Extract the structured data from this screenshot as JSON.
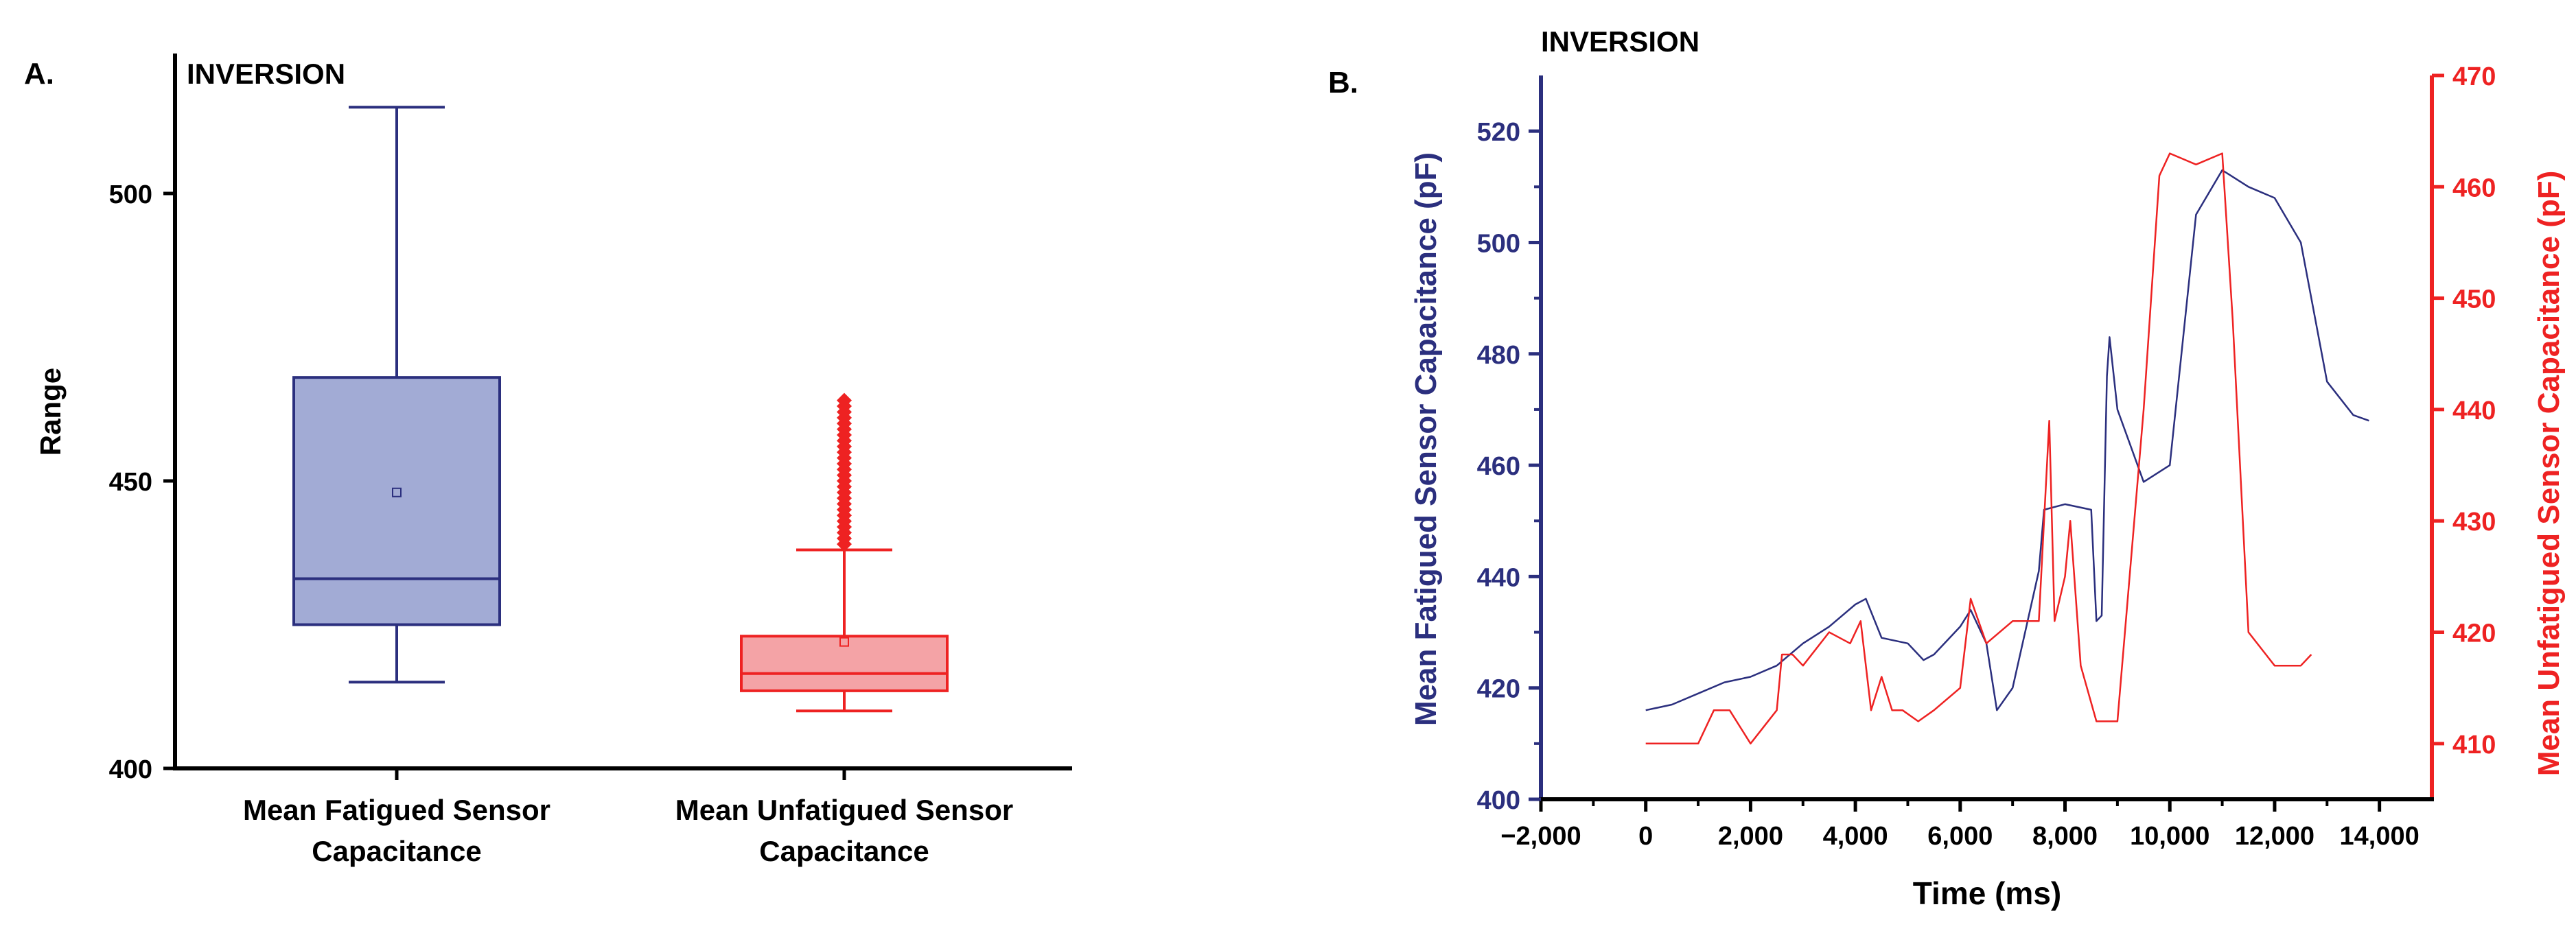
{
  "panels": {
    "a": {
      "label": "A.",
      "title": "INVERSION"
    },
    "b": {
      "label": "B.",
      "title": "INVERSION"
    }
  },
  "colors": {
    "fatigued": "#2b2f7e",
    "fatigued_fill": "#a2abd5",
    "unfatigued": "#ee2222",
    "unfatigued_fill": "#f4a3a6"
  },
  "chart_data": [
    {
      "type": "box",
      "title": "INVERSION",
      "ylabel": "Range",
      "xlabel": "",
      "ylim": [
        400,
        520
      ],
      "yticks": [
        400,
        450,
        500
      ],
      "categories": [
        "Mean Fatigued Sensor\nCapacitance",
        "Mean Unfatigued Sensor\nCapacitance"
      ],
      "boxes": [
        {
          "name": "Mean Fatigued Sensor Capacitance",
          "whisker_low": 415,
          "q1": 425,
          "median": 433,
          "mean": 448,
          "q3": 468,
          "whisker_high": 515,
          "outliers": []
        },
        {
          "name": "Mean Unfatigued Sensor Capacitance",
          "whisker_low": 410,
          "q1": 413.5,
          "median": 416.5,
          "mean": 422,
          "q3": 423,
          "whisker_high": 438,
          "outliers": [
            439,
            440,
            441,
            442,
            443,
            444,
            445,
            446,
            447,
            448,
            449,
            450,
            451,
            452,
            453,
            454,
            455,
            456,
            457,
            458,
            459,
            460,
            461,
            462,
            463,
            464
          ]
        }
      ],
      "grid": false
    },
    {
      "type": "line",
      "title": "INVERSION",
      "xlabel": "Time (ms)",
      "ylabel": "Mean Fatigued Sensor Capacitance (pF)",
      "y2label": "Mean Unfatigued Sensor Capacitance (pF)",
      "xlim": [
        -2000,
        15000
      ],
      "xticks": [
        -2000,
        0,
        2000,
        4000,
        6000,
        8000,
        10000,
        12000,
        14000
      ],
      "xticklabels": [
        "−2,000",
        "0",
        "2,000",
        "4,000",
        "6,000",
        "8,000",
        "10,000",
        "12,000",
        "14,000"
      ],
      "ylim": [
        400,
        530
      ],
      "yticks": [
        400,
        420,
        440,
        460,
        480,
        500,
        520
      ],
      "y2lim": [
        405,
        470
      ],
      "y2ticks": [
        410,
        420,
        430,
        440,
        450,
        460,
        470
      ],
      "grid": false,
      "series": [
        {
          "axis": "left",
          "x": [
            0,
            500,
            1000,
            1500,
            2000,
            2500,
            3000,
            3500,
            4000,
            4200,
            4500,
            5000,
            5300,
            5500,
            6000,
            6200,
            6500,
            6700,
            7000,
            7500,
            7600,
            8000,
            8500,
            8600,
            8700,
            8800,
            8850,
            9000,
            9500,
            10000,
            10500,
            11000,
            11500,
            12000,
            12500,
            13000,
            13500,
            13800
          ],
          "y": [
            416,
            417,
            419,
            421,
            422,
            424,
            428,
            431,
            435,
            436,
            429,
            428,
            425,
            426,
            431,
            434,
            428,
            416,
            420,
            441,
            452,
            453,
            452,
            432,
            433,
            476,
            483,
            470,
            457,
            460,
            505,
            513,
            510,
            508,
            500,
            475,
            469,
            468
          ]
        },
        {
          "axis": "right",
          "x": [
            0,
            500,
            1000,
            1300,
            1600,
            2000,
            2500,
            2600,
            2800,
            3000,
            3500,
            3900,
            4100,
            4300,
            4500,
            4700,
            4900,
            5200,
            5500,
            6000,
            6200,
            6500,
            7000,
            7500,
            7700,
            7800,
            8000,
            8100,
            8300,
            8600,
            9000,
            9500,
            9800,
            10000,
            10500,
            11000,
            11200,
            11500,
            12000,
            12500,
            12700
          ],
          "y": [
            410,
            410,
            410,
            413,
            413,
            410,
            413,
            418,
            418,
            417,
            420,
            419,
            421,
            413,
            416,
            413,
            413,
            412,
            413,
            415,
            423,
            419,
            421,
            421,
            439,
            421,
            425,
            430,
            417,
            412,
            412,
            440,
            461,
            463,
            462,
            463,
            448,
            420,
            417,
            417,
            418
          ]
        }
      ]
    }
  ]
}
